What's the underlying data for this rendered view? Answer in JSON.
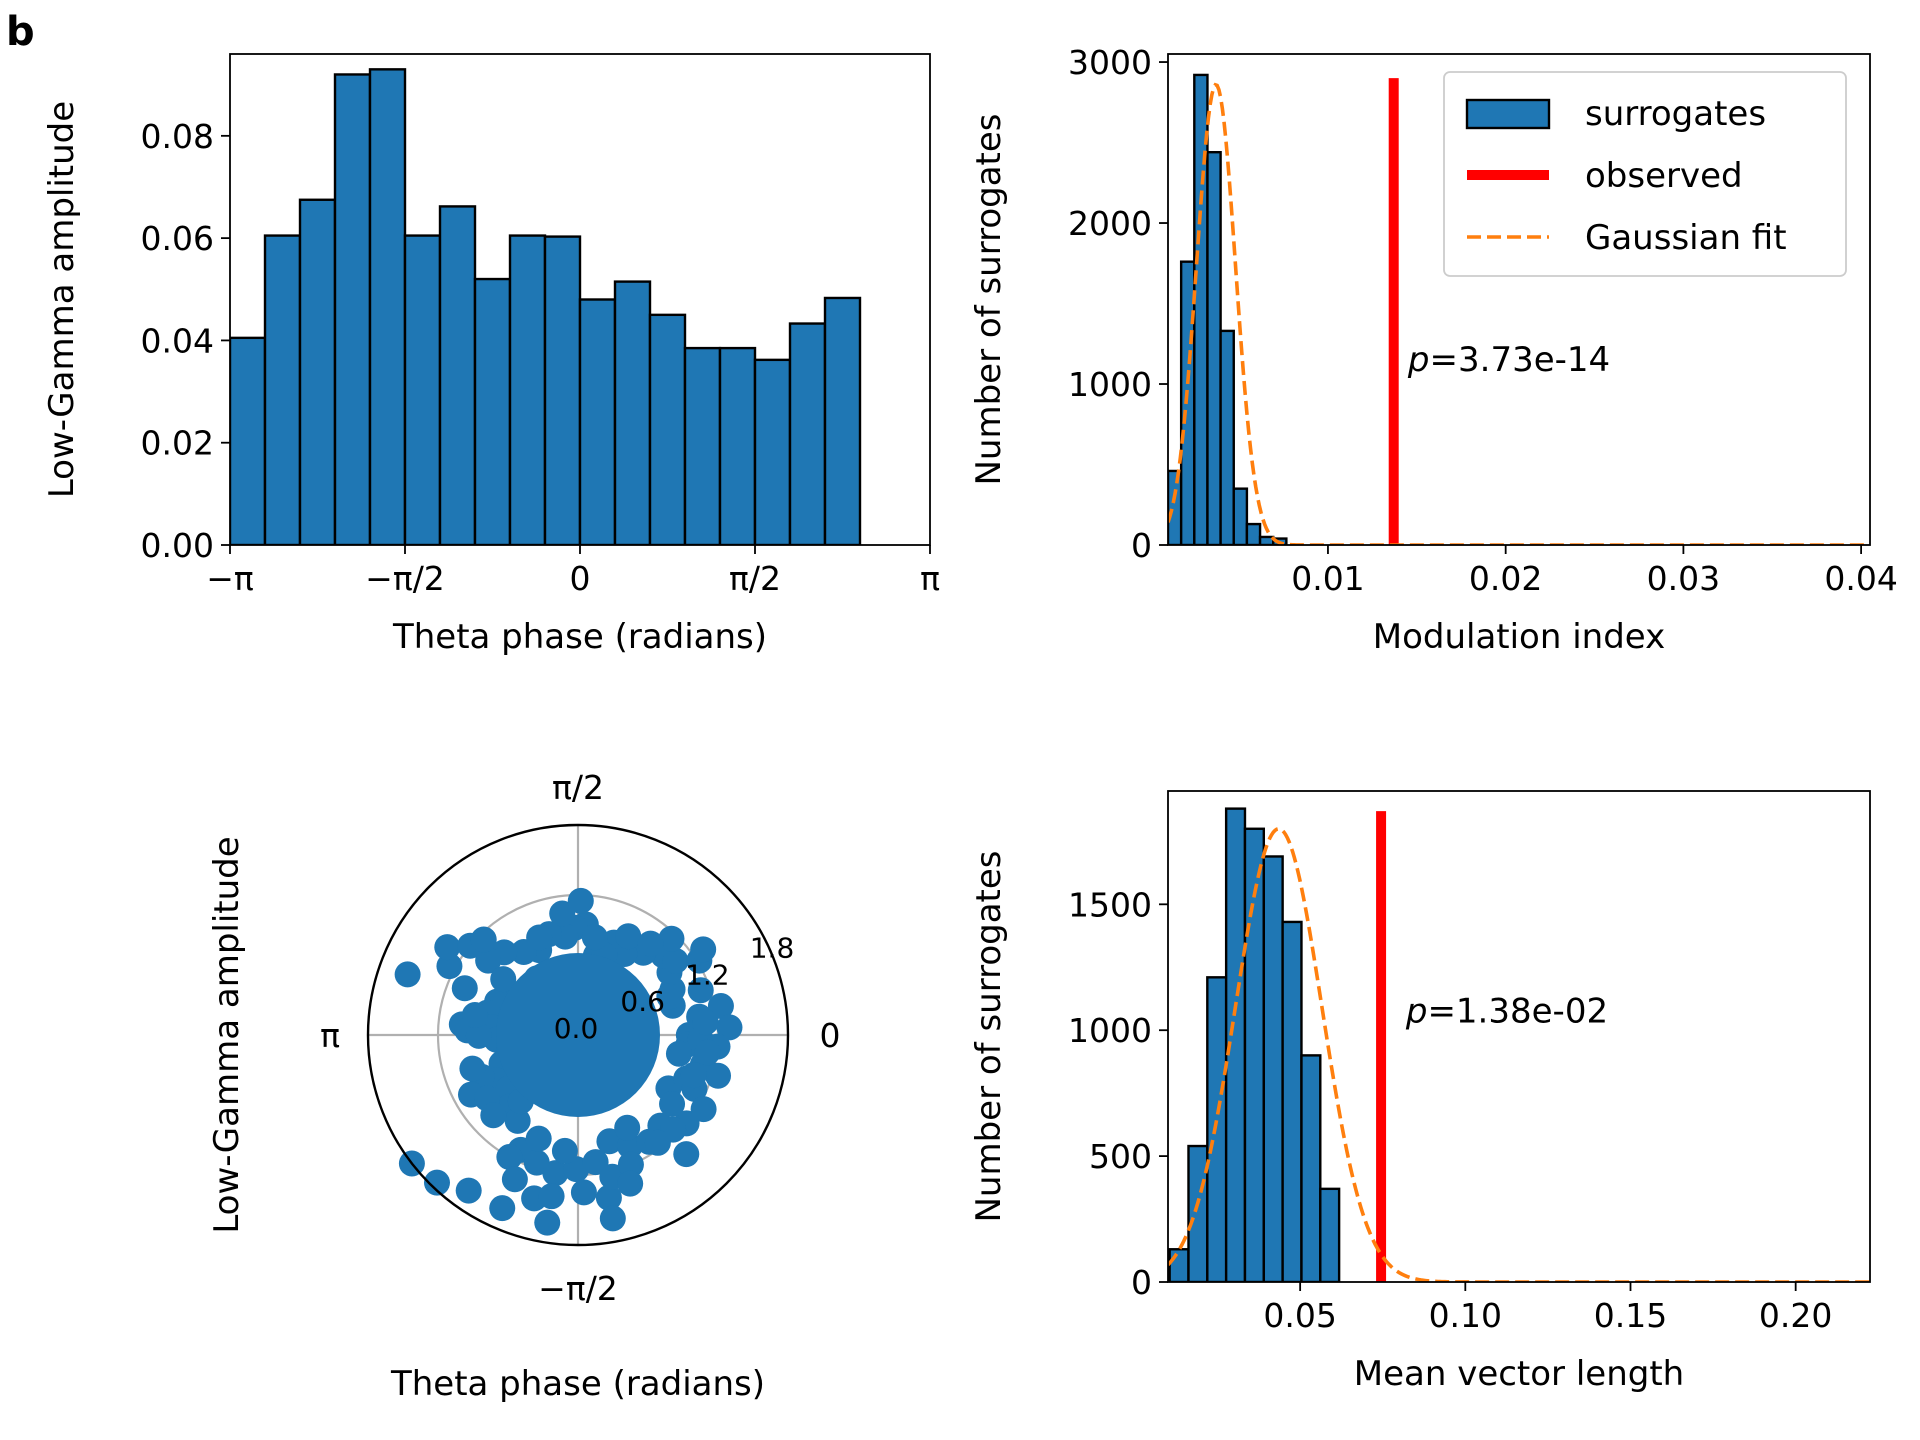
{
  "figure": {
    "panel_label": "b",
    "colors": {
      "bar": "#1f77b4",
      "observed": "#ff0000",
      "fit": "#ff7f0e",
      "grid": "#b0b0b0",
      "edge": "#000000"
    }
  },
  "chart_data": [
    {
      "id": "phase-amplitude-histogram",
      "type": "bar",
      "xlabel": "Theta phase (radians)",
      "ylabel": "Low-Gamma amplitude",
      "xlim": [
        -3.14159,
        3.14159
      ],
      "ylim": [
        0,
        0.096
      ],
      "x_ticks": [
        -3.14159,
        -1.5708,
        0,
        1.5708,
        3.14159
      ],
      "x_tick_labels": [
        "−π",
        "−π/2",
        "0",
        "π/2",
        "π"
      ],
      "y_ticks": [
        0,
        0.02,
        0.04,
        0.06,
        0.08
      ],
      "y_tick_labels": [
        "0.00",
        "0.02",
        "0.04",
        "0.06",
        "0.08"
      ],
      "bin_edges_start": -3.14159,
      "bin_width": 0.314159,
      "values": [
        0.0405,
        0.0605,
        0.0675,
        0.092,
        0.093,
        0.0605,
        0.0662,
        0.052,
        0.0605,
        0.0603,
        0.048,
        0.0515,
        0.045,
        0.0385,
        0.0385,
        0.0362,
        0.0433,
        0.0483
      ]
    },
    {
      "id": "modulation-index-surrogates",
      "type": "bar",
      "xlabel": "Modulation index",
      "ylabel": "Number of surrogates",
      "xlim": [
        0.001,
        0.0405
      ],
      "ylim": [
        0,
        3050
      ],
      "x_ticks": [
        0.01,
        0.02,
        0.03,
        0.04
      ],
      "x_tick_labels": [
        "0.01",
        "0.02",
        "0.03",
        "0.04"
      ],
      "y_ticks": [
        0,
        1000,
        2000,
        3000
      ],
      "y_tick_labels": [
        "0",
        "1000",
        "2000",
        "3000"
      ],
      "bin_edges_start": 0.001,
      "bin_width": 0.00074,
      "values": [
        460,
        1760,
        2920,
        2440,
        1330,
        350,
        130,
        50,
        40
      ],
      "observed_x": 0.0137,
      "observed_top": 2900,
      "fit": {
        "mean": 0.0037,
        "sd": 0.0011,
        "peak": 2860
      },
      "annotation": {
        "italic": "p",
        "text": "=3.73e-14",
        "x": 0.0145,
        "y": 1080
      },
      "legend": {
        "position": "upper right",
        "entries": [
          "surrogates",
          "observed",
          "Gaussian fit"
        ]
      }
    },
    {
      "id": "polar-phase-amplitude",
      "type": "scatter",
      "coordinate_system": "polar",
      "xlabel": "Theta phase (radians)",
      "ylabel": "Low-Gamma amplitude",
      "rlim": [
        0,
        1.8
      ],
      "r_tick_labels": [
        "0.0",
        "0.6",
        "1.2",
        "1.8"
      ],
      "angle_labels": {
        "top": "π/2",
        "bottom": "−π/2",
        "left": "π",
        "right": "0"
      },
      "points": [
        [
          0.0,
          0.95
        ],
        [
          0.15,
          1.05
        ],
        [
          0.3,
          0.85
        ],
        [
          0.45,
          0.9
        ],
        [
          0.6,
          0.95
        ],
        [
          0.75,
          1.0
        ],
        [
          0.9,
          0.9
        ],
        [
          1.05,
          0.8
        ],
        [
          1.2,
          0.85
        ],
        [
          1.35,
          0.7
        ],
        [
          1.5,
          0.95
        ],
        [
          1.6,
          0.92
        ],
        [
          1.7,
          0.85
        ],
        [
          1.85,
          0.9
        ],
        [
          2.0,
          0.8
        ],
        [
          2.15,
          0.85
        ],
        [
          2.3,
          0.95
        ],
        [
          2.45,
          1.0
        ],
        [
          2.6,
          0.7
        ],
        [
          2.75,
          0.75
        ],
        [
          2.9,
          0.8
        ],
        [
          3.05,
          0.75
        ],
        [
          3.2,
          0.7
        ],
        [
          3.35,
          0.6
        ],
        [
          3.5,
          0.7
        ],
        [
          3.65,
          0.8
        ],
        [
          3.8,
          0.75
        ],
        [
          3.95,
          0.85
        ],
        [
          4.1,
          0.9
        ],
        [
          4.25,
          1.1
        ],
        [
          4.4,
          1.15
        ],
        [
          4.55,
          1.2
        ],
        [
          4.7,
          1.15
        ],
        [
          4.85,
          1.1
        ],
        [
          5.0,
          0.95
        ],
        [
          5.15,
          1.05
        ],
        [
          5.3,
          1.1
        ],
        [
          5.45,
          1.05
        ],
        [
          5.6,
          1.2
        ],
        [
          5.75,
          0.9
        ],
        [
          5.9,
          1.0
        ],
        [
          6.05,
          1.1
        ],
        [
          6.2,
          0.95
        ],
        [
          0.4,
          0.85
        ],
        [
          1.1,
          0.95
        ],
        [
          1.95,
          0.9
        ],
        [
          2.5,
          0.8
        ],
        [
          3.3,
          0.55
        ],
        [
          4.0,
          0.75
        ],
        [
          4.6,
          1.0
        ],
        [
          5.2,
          0.9
        ],
        [
          6.1,
          0.88
        ],
        [
          0.65,
          1.05
        ],
        [
          1.25,
          0.72
        ],
        [
          2.2,
          0.6
        ],
        [
          3.55,
          0.9
        ],
        [
          4.35,
          0.95
        ],
        [
          5.5,
          1.15
        ],
        [
          5.85,
          1.1
        ],
        [
          6.25,
          1.05
        ],
        [
          0.2,
          1.25
        ],
        [
          0.05,
          1.3
        ],
        [
          6.2,
          1.2
        ],
        [
          0.55,
          1.22
        ],
        [
          5.75,
          1.25
        ],
        [
          5.45,
          1.38
        ],
        [
          0.1,
          1.1
        ],
        [
          6.0,
          1.25
        ],
        [
          2.65,
          1.25
        ],
        [
          2.55,
          1.35
        ],
        [
          2.45,
          1.2
        ],
        [
          2.35,
          1.15
        ],
        [
          3.05,
          1.0
        ],
        [
          3.1,
          0.95
        ],
        [
          4.45,
          1.45
        ],
        [
          4.75,
          1.35
        ],
        [
          4.9,
          1.42
        ],
        [
          3.65,
          1.05
        ],
        [
          3.45,
          0.95
        ],
        [
          4.95,
          1.25
        ],
        [
          0.8,
          1.15
        ],
        [
          0.9,
          1.0
        ],
        [
          1.7,
          1.05
        ],
        [
          1.4,
          0.85
        ],
        [
          1.55,
          1.15
        ],
        [
          3.15,
          0.85
        ],
        [
          3.75,
          0.95
        ],
        [
          2.95,
          0.9
        ],
        [
          5.35,
          1.15
        ],
        [
          5.65,
          1.0
        ],
        [
          5.95,
          1.05
        ],
        [
          6.15,
          1.12
        ],
        [
          0.35,
          1.12
        ],
        [
          2.75,
          1.05
        ],
        [
          4.2,
          1.2
        ],
        [
          4.55,
          1.4
        ],
        [
          4.3,
          1.35
        ],
        [
          5.1,
          1.2
        ],
        [
          3.9,
          1.0
        ],
        [
          2.8,
          1.55
        ],
        [
          3.8,
          1.8
        ],
        [
          3.95,
          1.75
        ],
        [
          4.1,
          1.63
        ],
        [
          4.3,
          1.62
        ],
        [
          4.55,
          1.63
        ],
        [
          4.9,
          1.6
        ],
        [
          5.05,
          1.35
        ],
        [
          0.6,
          1.3
        ]
      ]
    },
    {
      "id": "mean-vector-length-surrogates",
      "type": "bar",
      "xlabel": "Mean vector length",
      "ylabel": "Number of surrogates",
      "xlim": [
        0.01,
        0.2225
      ],
      "ylim": [
        0,
        1950
      ],
      "x_ticks": [
        0.05,
        0.1,
        0.15,
        0.2
      ],
      "x_tick_labels": [
        "0.05",
        "0.10",
        "0.15",
        "0.20"
      ],
      "y_ticks": [
        0,
        500,
        1000,
        1500
      ],
      "y_tick_labels": [
        "0",
        "500",
        "1000",
        "1500"
      ],
      "bin_edges_start": 0.0105,
      "bin_width": 0.0057,
      "values": [
        130,
        540,
        1210,
        1880,
        1800,
        1690,
        1430,
        900,
        370
      ],
      "observed_x": 0.0745,
      "observed_top": 1870,
      "fit": {
        "mean": 0.0435,
        "sd": 0.0131,
        "peak": 1800
      },
      "annotation": {
        "italic": "p",
        "text": "=1.38e-02",
        "x": 0.082,
        "y": 1030
      }
    }
  ]
}
